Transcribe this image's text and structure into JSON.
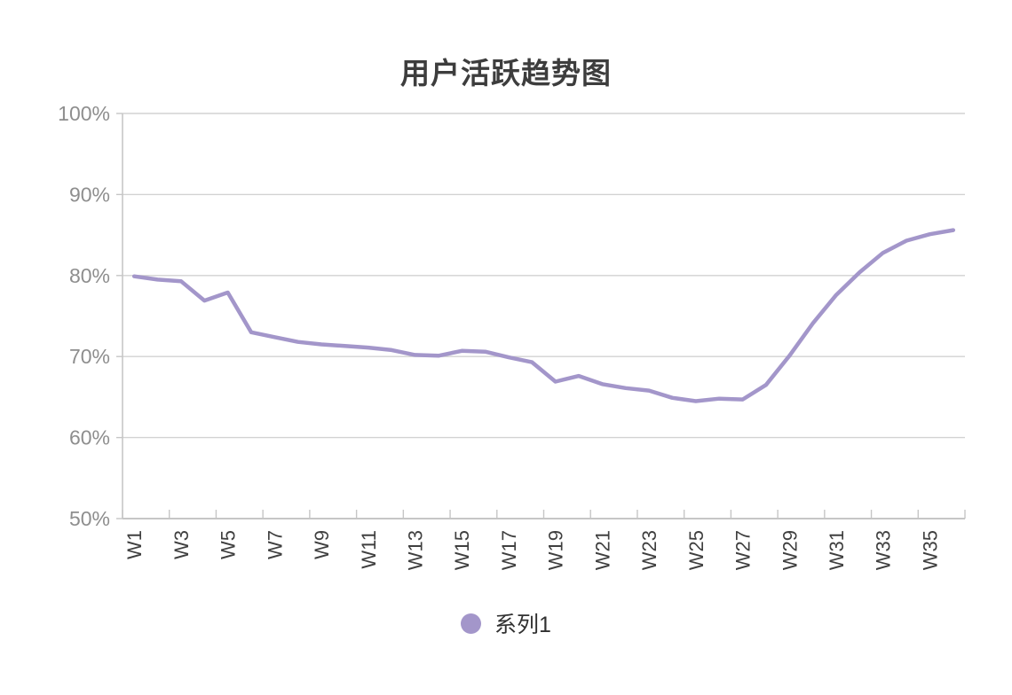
{
  "page": {
    "background": "#ffffff"
  },
  "header": {
    "title": "用户活跃趋势图"
  },
  "legend": {
    "position": "bottom",
    "items": [
      {
        "label": "系列1",
        "marker_color": "#a396ca",
        "marker_shape": "circle"
      }
    ]
  },
  "colors": {
    "line": "#a396ca",
    "legend_marker": "#a396ca",
    "grid": "#d2d2d2",
    "axis": "#c6c6c6",
    "y_label": "#8e8e8e",
    "x_label": "#3f3f3f",
    "title": "#3d3d3d",
    "legend_text": "#303030",
    "background": "#ffffff"
  },
  "chart_data": {
    "type": "line",
    "title": "用户活跃趋势图",
    "categories": [
      "W1",
      "W2",
      "W3",
      "W4",
      "W5",
      "W6",
      "W7",
      "W8",
      "W9",
      "W10",
      "W11",
      "W12",
      "W13",
      "W14",
      "W15",
      "W16",
      "W17",
      "W18",
      "W19",
      "W20",
      "W21",
      "W22",
      "W23",
      "W24",
      "W25",
      "W26",
      "W27",
      "W28",
      "W29",
      "W30",
      "W31",
      "W32",
      "W33",
      "W34",
      "W35",
      "W36"
    ],
    "series": [
      {
        "name": "系列1",
        "color": "#a396ca",
        "unit": "%",
        "values": [
          79.9,
          79.5,
          79.3,
          76.9,
          77.9,
          73.0,
          72.4,
          71.8,
          71.5,
          71.3,
          71.1,
          70.8,
          70.2,
          70.1,
          70.7,
          70.6,
          69.9,
          69.3,
          66.9,
          67.6,
          66.6,
          66.1,
          65.8,
          64.9,
          64.5,
          64.8,
          64.7,
          66.5,
          70.1,
          74.1,
          77.6,
          80.4,
          82.8,
          84.3,
          85.1,
          85.6
        ]
      }
    ],
    "xlabel": "",
    "ylabel": "",
    "y_axis": {
      "min": 50,
      "max": 100,
      "step": 10,
      "unit": "%",
      "tick_labels": [
        "50%",
        "60%",
        "70%",
        "80%",
        "90%",
        "100%"
      ]
    },
    "x_axis": {
      "labeled_ticks": [
        "W1",
        "W3",
        "W5",
        "W7",
        "W9",
        "W11",
        "W13",
        "W15",
        "W17",
        "W19",
        "W21",
        "W23",
        "W25",
        "W27",
        "W29",
        "W31",
        "W33",
        "W35"
      ],
      "label_every": 2,
      "label_rotation_deg": -90
    },
    "grid": "horizontal",
    "markers": "none",
    "legend_position": "bottom"
  }
}
